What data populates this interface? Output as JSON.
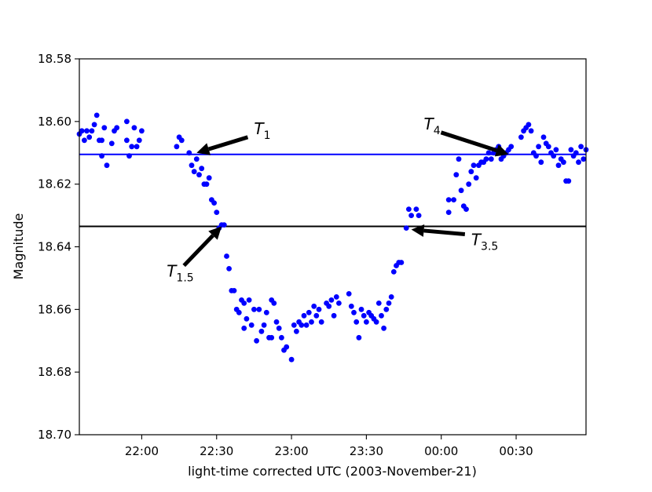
{
  "chart_data": {
    "type": "scatter",
    "title": "",
    "xlabel": "light-time corrected UTC (2003-November-21)",
    "ylabel": "Magnitude",
    "x_unit": "hh:mm UTC, 2003-11-21 into 2003-11-22",
    "xlim": [
      "21:35",
      "00:58"
    ],
    "ylim": [
      18.58,
      18.7
    ],
    "y_inverted": true,
    "grid": false,
    "legend": "none",
    "x_ticks": [
      "22:00",
      "22:30",
      "23:00",
      "23:30",
      "00:00",
      "00:30"
    ],
    "y_ticks": [
      "18.58",
      "18.60",
      "18.62",
      "18.64",
      "18.66",
      "18.68",
      "18.70"
    ],
    "point_color": "#0000ff",
    "series": [
      {
        "marker": "circle",
        "points": [
          [
            "21:35",
            18.604
          ],
          [
            "21:36",
            18.603
          ],
          [
            "21:37",
            18.606
          ],
          [
            "21:38",
            18.603
          ],
          [
            "21:39",
            18.605
          ],
          [
            "21:40",
            18.603
          ],
          [
            "21:41",
            18.601
          ],
          [
            "21:42",
            18.598
          ],
          [
            "21:43",
            18.606
          ],
          [
            "21:44",
            18.606
          ],
          [
            "21:44",
            18.611
          ],
          [
            "21:45",
            18.602
          ],
          [
            "21:46",
            18.614
          ],
          [
            "21:48",
            18.607
          ],
          [
            "21:49",
            18.603
          ],
          [
            "21:50",
            18.602
          ],
          [
            "21:54",
            18.6
          ],
          [
            "21:54",
            18.606
          ],
          [
            "21:55",
            18.611
          ],
          [
            "21:56",
            18.608
          ],
          [
            "21:57",
            18.602
          ],
          [
            "21:58",
            18.608
          ],
          [
            "21:59",
            18.606
          ],
          [
            "22:00",
            18.603
          ],
          [
            "22:14",
            18.608
          ],
          [
            "22:15",
            18.605
          ],
          [
            "22:16",
            18.606
          ],
          [
            "22:19",
            18.61
          ],
          [
            "22:20",
            18.614
          ],
          [
            "22:21",
            18.616
          ],
          [
            "22:22",
            18.612
          ],
          [
            "22:23",
            18.617
          ],
          [
            "22:24",
            18.615
          ],
          [
            "22:25",
            18.62
          ],
          [
            "22:26",
            18.62
          ],
          [
            "22:27",
            18.618
          ],
          [
            "22:28",
            18.625
          ],
          [
            "22:29",
            18.626
          ],
          [
            "22:30",
            18.629
          ],
          [
            "22:31",
            18.634
          ],
          [
            "22:32",
            18.633
          ],
          [
            "22:33",
            18.633
          ],
          [
            "22:34",
            18.643
          ],
          [
            "22:35",
            18.647
          ],
          [
            "22:36",
            18.654
          ],
          [
            "22:37",
            18.654
          ],
          [
            "22:38",
            18.66
          ],
          [
            "22:39",
            18.661
          ],
          [
            "22:40",
            18.657
          ],
          [
            "22:41",
            18.658
          ],
          [
            "22:41",
            18.666
          ],
          [
            "22:42",
            18.663
          ],
          [
            "22:43",
            18.657
          ],
          [
            "22:44",
            18.665
          ],
          [
            "22:45",
            18.66
          ],
          [
            "22:46",
            18.67
          ],
          [
            "22:47",
            18.66
          ],
          [
            "22:48",
            18.667
          ],
          [
            "22:49",
            18.665
          ],
          [
            "22:50",
            18.661
          ],
          [
            "22:51",
            18.669
          ],
          [
            "22:52",
            18.657
          ],
          [
            "22:52",
            18.669
          ],
          [
            "22:53",
            18.658
          ],
          [
            "22:54",
            18.664
          ],
          [
            "22:55",
            18.666
          ],
          [
            "22:56",
            18.669
          ],
          [
            "22:57",
            18.673
          ],
          [
            "22:58",
            18.672
          ],
          [
            "23:00",
            18.676
          ],
          [
            "23:01",
            18.665
          ],
          [
            "23:02",
            18.667
          ],
          [
            "23:03",
            18.664
          ],
          [
            "23:04",
            18.665
          ],
          [
            "23:05",
            18.662
          ],
          [
            "23:06",
            18.665
          ],
          [
            "23:07",
            18.661
          ],
          [
            "23:08",
            18.664
          ],
          [
            "23:09",
            18.659
          ],
          [
            "23:10",
            18.662
          ],
          [
            "23:11",
            18.66
          ],
          [
            "23:12",
            18.664
          ],
          [
            "23:14",
            18.658
          ],
          [
            "23:15",
            18.659
          ],
          [
            "23:16",
            18.657
          ],
          [
            "23:17",
            18.662
          ],
          [
            "23:18",
            18.656
          ],
          [
            "23:19",
            18.658
          ],
          [
            "23:23",
            18.655
          ],
          [
            "23:24",
            18.659
          ],
          [
            "23:25",
            18.661
          ],
          [
            "23:26",
            18.664
          ],
          [
            "23:27",
            18.669
          ],
          [
            "23:28",
            18.66
          ],
          [
            "23:29",
            18.662
          ],
          [
            "23:30",
            18.664
          ],
          [
            "23:31",
            18.661
          ],
          [
            "23:32",
            18.662
          ],
          [
            "23:33",
            18.663
          ],
          [
            "23:34",
            18.664
          ],
          [
            "23:35",
            18.658
          ],
          [
            "23:36",
            18.662
          ],
          [
            "23:37",
            18.666
          ],
          [
            "23:38",
            18.66
          ],
          [
            "23:39",
            18.658
          ],
          [
            "23:40",
            18.656
          ],
          [
            "23:41",
            18.648
          ],
          [
            "23:42",
            18.646
          ],
          [
            "23:43",
            18.645
          ],
          [
            "23:44",
            18.645
          ],
          [
            "23:46",
            18.634
          ],
          [
            "23:47",
            18.628
          ],
          [
            "23:48",
            18.63
          ],
          [
            "23:50",
            18.628
          ],
          [
            "23:51",
            18.63
          ],
          [
            "00:03",
            18.629
          ],
          [
            "00:03",
            18.625
          ],
          [
            "00:05",
            18.625
          ],
          [
            "00:06",
            18.617
          ],
          [
            "00:07",
            18.612
          ],
          [
            "00:08",
            18.622
          ],
          [
            "00:09",
            18.627
          ],
          [
            "00:10",
            18.628
          ],
          [
            "00:11",
            18.62
          ],
          [
            "00:12",
            18.616
          ],
          [
            "00:13",
            18.614
          ],
          [
            "00:14",
            18.618
          ],
          [
            "00:15",
            18.614
          ],
          [
            "00:16",
            18.613
          ],
          [
            "00:17",
            18.613
          ],
          [
            "00:18",
            18.612
          ],
          [
            "00:19",
            18.61
          ],
          [
            "00:20",
            18.612
          ],
          [
            "00:21",
            18.61
          ],
          [
            "00:22",
            18.609
          ],
          [
            "00:23",
            18.608
          ],
          [
            "00:24",
            18.612
          ],
          [
            "00:25",
            18.611
          ],
          [
            "00:26",
            18.61
          ],
          [
            "00:27",
            18.609
          ],
          [
            "00:28",
            18.608
          ],
          [
            "00:32",
            18.605
          ],
          [
            "00:33",
            18.603
          ],
          [
            "00:34",
            18.602
          ],
          [
            "00:35",
            18.601
          ],
          [
            "00:36",
            18.603
          ],
          [
            "00:37",
            18.61
          ],
          [
            "00:38",
            18.611
          ],
          [
            "00:39",
            18.608
          ],
          [
            "00:40",
            18.613
          ],
          [
            "00:41",
            18.605
          ],
          [
            "00:42",
            18.607
          ],
          [
            "00:43",
            18.608
          ],
          [
            "00:44",
            18.61
          ],
          [
            "00:45",
            18.611
          ],
          [
            "00:46",
            18.609
          ],
          [
            "00:47",
            18.614
          ],
          [
            "00:48",
            18.612
          ],
          [
            "00:49",
            18.613
          ],
          [
            "00:50",
            18.619
          ],
          [
            "00:51",
            18.619
          ],
          [
            "00:52",
            18.609
          ],
          [
            "00:53",
            18.611
          ],
          [
            "00:54",
            18.61
          ],
          [
            "00:55",
            18.613
          ],
          [
            "00:56",
            18.608
          ],
          [
            "00:57",
            18.612
          ],
          [
            "00:58",
            18.609
          ]
        ]
      }
    ],
    "reference_lines": [
      {
        "y": 18.6105,
        "color": "#0000ff"
      },
      {
        "y": 18.6335,
        "color": "#000000"
      }
    ],
    "annotations": [
      {
        "base": "T",
        "sub": "1",
        "points_to": [
          "22:22",
          18.61
        ],
        "text_at": [
          "22:45",
          18.604
        ]
      },
      {
        "base": "T",
        "sub": "4",
        "points_to": [
          "00:27",
          18.6105
        ],
        "text_at": [
          "23:53",
          18.6025
        ]
      },
      {
        "base": "T",
        "sub": "1.5",
        "points_to": [
          "22:32",
          18.6335
        ],
        "text_at": [
          "22:10",
          18.6495
        ]
      },
      {
        "base": "T",
        "sub": "3.5",
        "points_to": [
          "23:48",
          18.6345
        ],
        "text_at": [
          "00:12",
          18.6395
        ]
      }
    ]
  }
}
